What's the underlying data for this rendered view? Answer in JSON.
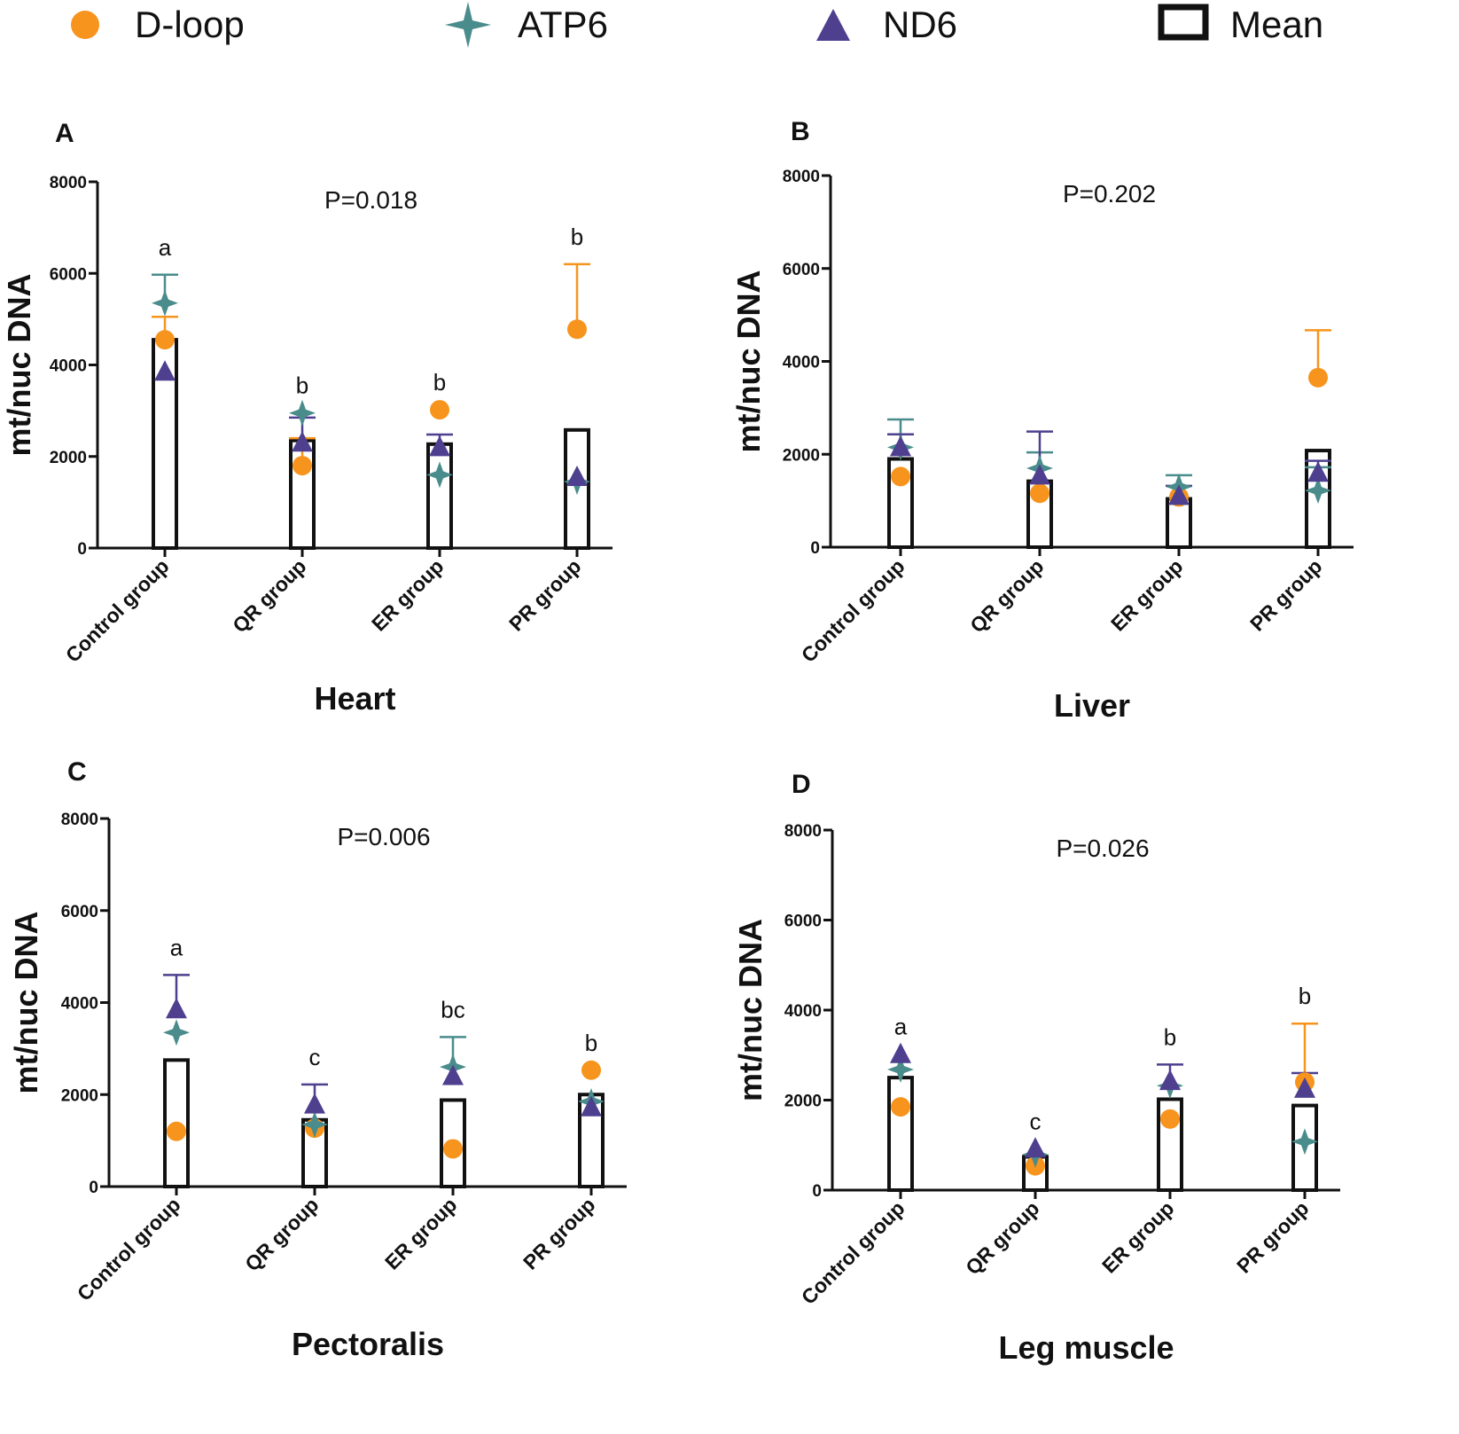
{
  "legend": [
    {
      "label": "D-loop",
      "marker": "circle-icon",
      "color": "#F7941D"
    },
    {
      "label": "ATP6",
      "marker": "star-icon",
      "color": "#4A8C8C"
    },
    {
      "label": "ND6",
      "marker": "triangle-icon",
      "color": "#4E3F8F"
    },
    {
      "label": "Mean",
      "marker": "square-outline-icon",
      "color": "#111111"
    }
  ],
  "chart_data": [
    {
      "type": "bar",
      "panel": "A",
      "title": "P=0.018",
      "xlabel": "Heart",
      "ylabel": "mt/nuc DNA",
      "ylim": [
        0,
        8000
      ],
      "yticks": [
        "0",
        "2000",
        "4000",
        "6000",
        "8000"
      ],
      "categories": [
        "Control group",
        "QR group",
        "ER group",
        "PR group"
      ],
      "mean": [
        4550,
        2350,
        2270,
        2580
      ],
      "significance": [
        "a",
        "b",
        "b",
        "b"
      ],
      "series": [
        {
          "name": "D-loop",
          "values": [
            4550,
            1800,
            3020,
            4780
          ],
          "error": [
            500,
            600,
            0,
            1420
          ]
        },
        {
          "name": "ATP6",
          "values": [
            5350,
            2950,
            1600,
            1450
          ],
          "error": [
            620,
            0,
            0,
            0
          ]
        },
        {
          "name": "ND6",
          "values": [
            3850,
            2300,
            2200,
            1550
          ],
          "error": [
            0,
            550,
            280,
            0
          ]
        }
      ]
    },
    {
      "type": "bar",
      "panel": "B",
      "title": "P=0.202",
      "xlabel": "Liver",
      "ylabel": "mt/nuc DNA",
      "ylim": [
        0,
        8000
      ],
      "yticks": [
        "0",
        "2000",
        "4000",
        "6000",
        "8000"
      ],
      "categories": [
        "Control group",
        "QR group",
        "ER group",
        "PR group"
      ],
      "mean": [
        1900,
        1420,
        1040,
        2080
      ],
      "significance": [
        "",
        "",
        "",
        ""
      ],
      "series": [
        {
          "name": "D-loop",
          "values": [
            1520,
            1160,
            1080,
            3650
          ],
          "error": [
            0,
            0,
            0,
            1020
          ]
        },
        {
          "name": "ATP6",
          "values": [
            2150,
            1700,
            1300,
            1220
          ],
          "error": [
            600,
            340,
            250,
            500
          ]
        },
        {
          "name": "ND6",
          "values": [
            2150,
            1540,
            1100,
            1600
          ],
          "error": [
            280,
            950,
            220,
            260
          ]
        }
      ]
    },
    {
      "type": "bar",
      "panel": "C",
      "title": "P=0.006",
      "xlabel": "Pectoralis",
      "ylabel": "mt/nuc DNA",
      "ylim": [
        0,
        8000
      ],
      "yticks": [
        "0",
        "2000",
        "4000",
        "6000",
        "8000"
      ],
      "categories": [
        "Control group",
        "QR group",
        "ER group",
        "PR group"
      ],
      "mean": [
        2750,
        1450,
        1880,
        2000
      ],
      "significance": [
        "a",
        "c",
        "bc",
        "b"
      ],
      "series": [
        {
          "name": "D-loop",
          "values": [
            1200,
            1270,
            820,
            2530
          ],
          "error": [
            0,
            0,
            0,
            0
          ]
        },
        {
          "name": "ATP6",
          "values": [
            3350,
            1350,
            2600,
            1850
          ],
          "error": [
            0,
            0,
            650,
            0
          ]
        },
        {
          "name": "ND6",
          "values": [
            3850,
            1780,
            2400,
            1720
          ],
          "error": [
            750,
            440,
            0,
            0
          ]
        }
      ]
    },
    {
      "type": "bar",
      "panel": "D",
      "title": "P=0.026",
      "xlabel": "Leg muscle",
      "ylabel": "mt/nuc DNA",
      "ylim": [
        0,
        8000
      ],
      "yticks": [
        "0",
        "2000",
        "4000",
        "6000",
        "8000"
      ],
      "categories": [
        "Control group",
        "QR group",
        "ER group",
        "PR group"
      ],
      "mean": [
        2500,
        740,
        2020,
        1880
      ],
      "significance": [
        "a",
        "c",
        "b",
        "b"
      ],
      "series": [
        {
          "name": "D-loop",
          "values": [
            1850,
            540,
            1580,
            2400
          ],
          "error": [
            0,
            0,
            0,
            1300
          ]
        },
        {
          "name": "ATP6",
          "values": [
            2680,
            790,
            2320,
            1080
          ],
          "error": [
            0,
            0,
            0,
            0
          ]
        },
        {
          "name": "ND6",
          "values": [
            3020,
            920,
            2420,
            2250
          ],
          "error": [
            0,
            0,
            370,
            350
          ]
        }
      ]
    }
  ]
}
